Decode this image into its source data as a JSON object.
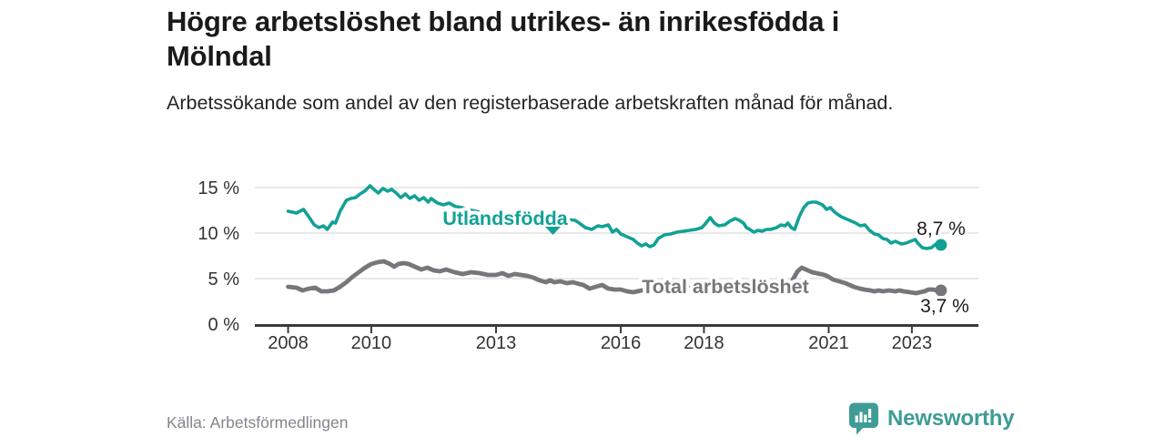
{
  "header": {
    "title": "Högre arbetslöshet bland utrikes- än inrikesfödda i Mölndal",
    "subtitle": "Arbetssökande som andel av den registerbaserade arbetskraften månad för månad."
  },
  "footer": {
    "source": "Källa: Arbetsförmedlingen",
    "brand": "Newsworthy"
  },
  "colors": {
    "foreign_born_line": "#12a195",
    "total_line": "#77777b",
    "gridline": "#d9d9d9",
    "axis": "#3a3a3a",
    "tick_text": "#333333",
    "value_text": "#1a1a1a",
    "brand": "#3e9c95"
  },
  "chart_data": {
    "type": "line",
    "unit": "%",
    "frequency": "monthly",
    "xlim": [
      2007.2,
      2024.6
    ],
    "ylim": [
      0,
      16.5
    ],
    "x_ticks": [
      2008,
      2010,
      2013,
      2016,
      2018,
      2021,
      2023
    ],
    "x_tick_labels": [
      "2008",
      "2010",
      "2013",
      "2016",
      "2018",
      "2021",
      "2023"
    ],
    "y_ticks": [
      0,
      5,
      10,
      15
    ],
    "y_tick_labels": [
      "0 %",
      "5 %",
      "10 %",
      "15 %"
    ],
    "y_gridlines": [
      5,
      10,
      15
    ],
    "legend_position": "inline-labels",
    "series": [
      {
        "name": "Utlandsfödda",
        "color": "#12a195",
        "end_label": "8,7 %",
        "end_value": 8.7,
        "points": [
          [
            2008.0,
            12.4
          ],
          [
            2008.2,
            12.2
          ],
          [
            2008.37,
            12.6
          ],
          [
            2008.48,
            11.9
          ],
          [
            2008.63,
            10.9
          ],
          [
            2008.74,
            10.6
          ],
          [
            2008.85,
            10.8
          ],
          [
            2008.94,
            10.4
          ],
          [
            2009.07,
            11.2
          ],
          [
            2009.14,
            11.1
          ],
          [
            2009.25,
            12.4
          ],
          [
            2009.4,
            13.6
          ],
          [
            2009.51,
            13.8
          ],
          [
            2009.62,
            13.9
          ],
          [
            2009.73,
            14.3
          ],
          [
            2009.84,
            14.6
          ],
          [
            2009.97,
            15.2
          ],
          [
            2010.06,
            14.8
          ],
          [
            2010.17,
            14.4
          ],
          [
            2010.28,
            14.9
          ],
          [
            2010.39,
            14.6
          ],
          [
            2010.49,
            14.8
          ],
          [
            2010.6,
            14.4
          ],
          [
            2010.71,
            13.9
          ],
          [
            2010.82,
            14.3
          ],
          [
            2010.93,
            13.8
          ],
          [
            2011.04,
            14.1
          ],
          [
            2011.15,
            13.6
          ],
          [
            2011.26,
            13.9
          ],
          [
            2011.37,
            13.4
          ],
          [
            2011.44,
            13.8
          ],
          [
            2011.59,
            13.3
          ],
          [
            2011.74,
            13.1
          ],
          [
            2011.87,
            13.3
          ],
          [
            2012.03,
            12.9
          ],
          [
            2012.18,
            12.8
          ],
          [
            2012.31,
            12.6
          ],
          [
            2012.5,
            12.4
          ],
          [
            2012.7,
            12.2
          ],
          [
            2012.9,
            12.1
          ],
          [
            2013.1,
            12.0
          ],
          [
            2013.3,
            11.8
          ],
          [
            2013.5,
            11.7
          ],
          [
            2013.7,
            11.6
          ],
          [
            2013.9,
            11.5
          ],
          [
            2014.1,
            11.4
          ],
          [
            2014.3,
            11.2
          ],
          [
            2014.5,
            11.3
          ],
          [
            2014.7,
            11.5
          ],
          [
            2014.9,
            11.4
          ],
          [
            2015.0,
            11.1
          ],
          [
            2015.15,
            10.6
          ],
          [
            2015.3,
            10.4
          ],
          [
            2015.45,
            10.8
          ],
          [
            2015.55,
            10.7
          ],
          [
            2015.7,
            10.9
          ],
          [
            2015.8,
            10.1
          ],
          [
            2015.9,
            10.4
          ],
          [
            2016.0,
            9.9
          ],
          [
            2016.15,
            9.6
          ],
          [
            2016.3,
            9.3
          ],
          [
            2016.4,
            8.9
          ],
          [
            2016.5,
            8.6
          ],
          [
            2016.6,
            8.8
          ],
          [
            2016.7,
            8.5
          ],
          [
            2016.8,
            8.7
          ],
          [
            2016.9,
            9.4
          ],
          [
            2017.05,
            9.8
          ],
          [
            2017.2,
            9.9
          ],
          [
            2017.35,
            10.1
          ],
          [
            2017.5,
            10.2
          ],
          [
            2017.65,
            10.3
          ],
          [
            2017.8,
            10.4
          ],
          [
            2017.95,
            10.6
          ],
          [
            2018.05,
            11.1
          ],
          [
            2018.15,
            11.7
          ],
          [
            2018.25,
            11.1
          ],
          [
            2018.35,
            10.8
          ],
          [
            2018.5,
            10.9
          ],
          [
            2018.62,
            11.3
          ],
          [
            2018.75,
            11.6
          ],
          [
            2018.85,
            11.4
          ],
          [
            2018.95,
            11.1
          ],
          [
            2019.02,
            10.6
          ],
          [
            2019.1,
            10.4
          ],
          [
            2019.2,
            10.1
          ],
          [
            2019.3,
            10.3
          ],
          [
            2019.4,
            10.2
          ],
          [
            2019.5,
            10.4
          ],
          [
            2019.6,
            10.4
          ],
          [
            2019.75,
            10.6
          ],
          [
            2019.85,
            10.9
          ],
          [
            2019.95,
            10.8
          ],
          [
            2020.02,
            11.1
          ],
          [
            2020.1,
            10.6
          ],
          [
            2020.18,
            10.4
          ],
          [
            2020.29,
            11.8
          ],
          [
            2020.4,
            12.8
          ],
          [
            2020.5,
            13.3
          ],
          [
            2020.6,
            13.4
          ],
          [
            2020.7,
            13.4
          ],
          [
            2020.85,
            13.1
          ],
          [
            2020.95,
            12.6
          ],
          [
            2021.04,
            12.8
          ],
          [
            2021.12,
            12.4
          ],
          [
            2021.2,
            12.1
          ],
          [
            2021.3,
            11.8
          ],
          [
            2021.4,
            11.6
          ],
          [
            2021.55,
            11.3
          ],
          [
            2021.65,
            11.1
          ],
          [
            2021.76,
            10.8
          ],
          [
            2021.87,
            10.9
          ],
          [
            2021.98,
            10.3
          ],
          [
            2022.1,
            9.9
          ],
          [
            2022.2,
            9.8
          ],
          [
            2022.3,
            9.4
          ],
          [
            2022.4,
            9.3
          ],
          [
            2022.5,
            8.9
          ],
          [
            2022.6,
            9.1
          ],
          [
            2022.75,
            8.8
          ],
          [
            2022.86,
            8.9
          ],
          [
            2022.97,
            9.1
          ],
          [
            2023.08,
            9.3
          ],
          [
            2023.14,
            8.9
          ],
          [
            2023.25,
            8.4
          ],
          [
            2023.36,
            8.3
          ],
          [
            2023.47,
            8.4
          ],
          [
            2023.58,
            8.8
          ],
          [
            2023.7,
            8.7
          ]
        ]
      },
      {
        "name": "Total arbetslöshet",
        "color": "#77777b",
        "end_label": "3,7 %",
        "end_value": 3.7,
        "points": [
          [
            2008.0,
            4.1
          ],
          [
            2008.2,
            4.0
          ],
          [
            2008.35,
            3.7
          ],
          [
            2008.5,
            3.9
          ],
          [
            2008.65,
            4.0
          ],
          [
            2008.8,
            3.6
          ],
          [
            2008.95,
            3.6
          ],
          [
            2009.1,
            3.7
          ],
          [
            2009.25,
            4.1
          ],
          [
            2009.4,
            4.6
          ],
          [
            2009.55,
            5.2
          ],
          [
            2009.7,
            5.7
          ],
          [
            2009.85,
            6.2
          ],
          [
            2010.0,
            6.6
          ],
          [
            2010.15,
            6.8
          ],
          [
            2010.3,
            6.9
          ],
          [
            2010.45,
            6.6
          ],
          [
            2010.55,
            6.3
          ],
          [
            2010.65,
            6.6
          ],
          [
            2010.78,
            6.7
          ],
          [
            2010.9,
            6.6
          ],
          [
            2011.05,
            6.3
          ],
          [
            2011.2,
            6.0
          ],
          [
            2011.35,
            6.2
          ],
          [
            2011.5,
            5.9
          ],
          [
            2011.65,
            5.8
          ],
          [
            2011.8,
            6.0
          ],
          [
            2012.0,
            5.7
          ],
          [
            2012.2,
            5.5
          ],
          [
            2012.4,
            5.7
          ],
          [
            2012.6,
            5.6
          ],
          [
            2012.8,
            5.4
          ],
          [
            2013.0,
            5.4
          ],
          [
            2013.15,
            5.6
          ],
          [
            2013.3,
            5.3
          ],
          [
            2013.45,
            5.5
          ],
          [
            2013.6,
            5.4
          ],
          [
            2013.75,
            5.3
          ],
          [
            2013.9,
            5.1
          ],
          [
            2014.05,
            4.8
          ],
          [
            2014.2,
            4.6
          ],
          [
            2014.3,
            4.8
          ],
          [
            2014.4,
            4.6
          ],
          [
            2014.55,
            4.7
          ],
          [
            2014.7,
            4.5
          ],
          [
            2014.85,
            4.6
          ],
          [
            2015.0,
            4.4
          ],
          [
            2015.1,
            4.3
          ],
          [
            2015.25,
            3.9
          ],
          [
            2015.4,
            4.1
          ],
          [
            2015.55,
            4.3
          ],
          [
            2015.7,
            3.9
          ],
          [
            2015.85,
            3.8
          ],
          [
            2016.0,
            3.8
          ],
          [
            2016.15,
            3.6
          ],
          [
            2016.3,
            3.5
          ],
          [
            2016.5,
            3.7
          ],
          [
            2016.7,
            3.8
          ],
          [
            2017.0,
            4.0
          ],
          [
            2017.3,
            4.1
          ],
          [
            2017.6,
            4.0
          ],
          [
            2017.9,
            3.9
          ],
          [
            2018.2,
            4.0
          ],
          [
            2018.5,
            3.9
          ],
          [
            2018.8,
            3.9
          ],
          [
            2019.1,
            4.0
          ],
          [
            2019.4,
            4.1
          ],
          [
            2019.7,
            4.2
          ],
          [
            2019.95,
            4.3
          ],
          [
            2020.1,
            4.6
          ],
          [
            2020.25,
            5.8
          ],
          [
            2020.35,
            6.2
          ],
          [
            2020.5,
            5.9
          ],
          [
            2020.6,
            5.7
          ],
          [
            2020.7,
            5.6
          ],
          [
            2020.8,
            5.5
          ],
          [
            2020.9,
            5.4
          ],
          [
            2021.0,
            5.2
          ],
          [
            2021.1,
            4.9
          ],
          [
            2021.25,
            4.7
          ],
          [
            2021.4,
            4.5
          ],
          [
            2021.5,
            4.3
          ],
          [
            2021.6,
            4.1
          ],
          [
            2021.75,
            3.9
          ],
          [
            2021.85,
            3.8
          ],
          [
            2022.0,
            3.7
          ],
          [
            2022.1,
            3.6
          ],
          [
            2022.2,
            3.7
          ],
          [
            2022.3,
            3.6
          ],
          [
            2022.45,
            3.7
          ],
          [
            2022.6,
            3.6
          ],
          [
            2022.7,
            3.7
          ],
          [
            2022.8,
            3.6
          ],
          [
            2022.95,
            3.5
          ],
          [
            2023.1,
            3.4
          ],
          [
            2023.2,
            3.5
          ],
          [
            2023.3,
            3.6
          ],
          [
            2023.4,
            3.8
          ],
          [
            2023.5,
            3.8
          ],
          [
            2023.6,
            3.7
          ],
          [
            2023.7,
            3.7
          ]
        ]
      }
    ]
  }
}
